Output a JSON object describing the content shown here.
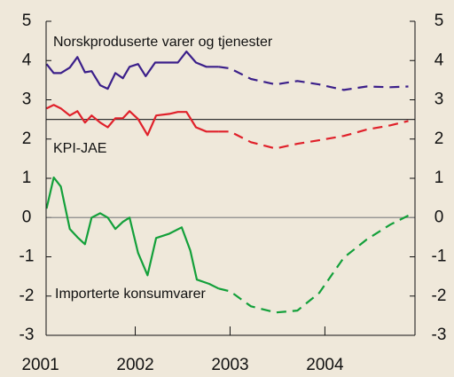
{
  "chart_data": {
    "type": "line",
    "annotations": [
      "Norskproduserte varer og tjenester",
      "KPI-JAE",
      "Importerte konsumvarer"
    ],
    "xlim": [
      2001.06,
      2004.95
    ],
    "xticks": [
      2001,
      2002,
      2003,
      2004
    ],
    "ylim": [
      -3,
      5
    ],
    "yticks": [
      -3,
      -2,
      -1,
      0,
      1,
      2,
      3,
      4,
      5
    ],
    "y2lim": [
      -3,
      5
    ],
    "y2ticks": [
      -3,
      -2,
      -1,
      0,
      1,
      2,
      3,
      4,
      5
    ],
    "reference_lines": [
      {
        "value": 2.5,
        "color": "#333333"
      },
      {
        "value": 0,
        "color": "#8a8a8a"
      }
    ],
    "dashed_from": 2002.88,
    "series": [
      {
        "color": "#3b1f8a",
        "x": [
          2001.065,
          2001.14,
          2001.215,
          2001.31,
          2001.39,
          2001.47,
          2001.54,
          2001.63,
          2001.71,
          2001.79,
          2001.87,
          2001.94,
          2002.03,
          2002.11,
          2002.21,
          2002.31,
          2002.45,
          2002.54,
          2002.64,
          2002.75,
          2002.88,
          2003.0,
          2003.22,
          2003.48,
          2003.71,
          2003.94,
          2004.2,
          2004.44,
          2004.69,
          2004.88
        ],
        "values": [
          3.91,
          3.68,
          3.68,
          3.82,
          4.09,
          3.7,
          3.73,
          3.37,
          3.28,
          3.68,
          3.55,
          3.84,
          3.91,
          3.6,
          3.95,
          3.95,
          3.95,
          4.23,
          3.95,
          3.84,
          3.84,
          3.8,
          3.53,
          3.39,
          3.48,
          3.39,
          3.25,
          3.34,
          3.32,
          3.34
        ]
      },
      {
        "color": "#e0202a",
        "x": [
          2001.065,
          2001.14,
          2001.215,
          2001.31,
          2001.39,
          2001.47,
          2001.54,
          2001.63,
          2001.71,
          2001.79,
          2001.87,
          2001.94,
          2002.03,
          2002.13,
          2002.22,
          2002.36,
          2002.45,
          2002.54,
          2002.64,
          2002.75,
          2002.88,
          2003.0,
          2003.22,
          2003.48,
          2003.71,
          2003.94,
          2004.2,
          2004.44,
          2004.69,
          2004.88
        ],
        "values": [
          2.78,
          2.87,
          2.78,
          2.6,
          2.71,
          2.42,
          2.6,
          2.42,
          2.3,
          2.53,
          2.53,
          2.71,
          2.51,
          2.1,
          2.6,
          2.64,
          2.69,
          2.69,
          2.3,
          2.19,
          2.19,
          2.19,
          1.92,
          1.76,
          1.88,
          1.97,
          2.08,
          2.24,
          2.35,
          2.46
        ]
      },
      {
        "color": "#13a03a",
        "x": [
          2001.065,
          2001.14,
          2001.215,
          2001.31,
          2001.39,
          2001.47,
          2001.54,
          2001.63,
          2001.71,
          2001.79,
          2001.87,
          2001.94,
          2002.03,
          2002.13,
          2002.22,
          2002.36,
          2002.49,
          2002.58,
          2002.65,
          2002.78,
          2002.88,
          2003.0,
          2003.22,
          2003.48,
          2003.71,
          2003.94,
          2004.2,
          2004.44,
          2004.69,
          2004.88
        ],
        "values": [
          0.23,
          1.02,
          0.79,
          -0.29,
          -0.5,
          -0.68,
          0,
          0.11,
          0,
          -0.29,
          -0.11,
          0,
          -0.9,
          -1.47,
          -0.52,
          -0.41,
          -0.25,
          -0.84,
          -1.58,
          -1.69,
          -1.81,
          -1.88,
          -2.26,
          -2.42,
          -2.37,
          -1.92,
          -1.02,
          -0.56,
          -0.18,
          0.05
        ]
      }
    ]
  }
}
